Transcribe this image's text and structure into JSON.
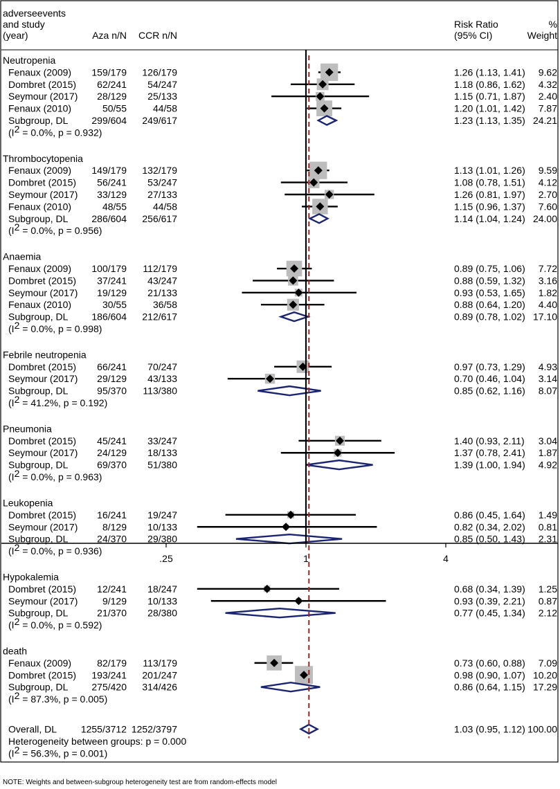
{
  "chart_data": {
    "type": "forest",
    "header": {
      "study_lines": [
        "adverseevents",
        "and study",
        "(year)"
      ],
      "col_aza": "Aza n/N",
      "col_ccr": "CCR n/N",
      "col_rr_lines": [
        "Risk Ratio",
        "(95% CI)"
      ],
      "col_weight_lines": [
        "%",
        "Weight"
      ]
    },
    "x_axis": {
      "scale": "log",
      "range": [
        0.0625,
        6.5
      ],
      "null_value": 1,
      "ticks": [
        {
          "value": 0.25,
          "label": ".25"
        },
        {
          "value": 1,
          "label": "1"
        },
        {
          "value": 4,
          "label": "4"
        }
      ]
    },
    "overall_reference_rr": 1.03,
    "colors": {
      "line": "#000000",
      "box": "#bdbdbd",
      "diamond_outline": "#1a2470",
      "reference_line": "#a02020"
    },
    "groups": [
      {
        "name": "Neutropenia",
        "studies": [
          {
            "label": "Fenaux (2009)",
            "aza": "159/179",
            "ccr": "126/179",
            "rr": 1.26,
            "lo": 1.13,
            "hi": 1.41,
            "ci": "1.26 (1.13, 1.41)",
            "weight": 9.62,
            "weight_label": "9.62"
          },
          {
            "label": "Dombret (2015)",
            "aza": "62/241",
            "ccr": "54/247",
            "rr": 1.18,
            "lo": 0.86,
            "hi": 1.62,
            "ci": "1.18 (0.86, 1.62)",
            "weight": 4.32,
            "weight_label": "4.32"
          },
          {
            "label": "Seymour (2017)",
            "aza": "28/129",
            "ccr": "25/133",
            "rr": 1.15,
            "lo": 0.71,
            "hi": 1.87,
            "ci": "1.15 (0.71, 1.87)",
            "weight": 2.4,
            "weight_label": "2.40"
          },
          {
            "label": "Fenaux (2010)",
            "aza": "50/55",
            "ccr": "44/58",
            "rr": 1.2,
            "lo": 1.01,
            "hi": 1.42,
            "ci": "1.20 (1.01, 1.42)",
            "weight": 7.87,
            "weight_label": "7.87"
          }
        ],
        "subgroup": {
          "label": "Subgroup, DL",
          "aza": "299/604",
          "ccr": "249/617",
          "rr": 1.23,
          "lo": 1.13,
          "hi": 1.35,
          "ci": "1.23 (1.13, 1.35)",
          "weight_label": "24.21"
        },
        "heterogeneity": {
          "prefix": "(I",
          "sup": "2",
          "suffix": " = 0.0%, p = 0.932)"
        }
      },
      {
        "name": "Thrombocytopenia",
        "studies": [
          {
            "label": "Fenaux (2009)",
            "aza": "149/179",
            "ccr": "132/179",
            "rr": 1.13,
            "lo": 1.01,
            "hi": 1.26,
            "ci": "1.13 (1.01, 1.26)",
            "weight": 9.59,
            "weight_label": "9.59"
          },
          {
            "label": "Dombret (2015)",
            "aza": "56/241",
            "ccr": "53/247",
            "rr": 1.08,
            "lo": 0.78,
            "hi": 1.51,
            "ci": "1.08 (0.78, 1.51)",
            "weight": 4.12,
            "weight_label": "4.12"
          },
          {
            "label": "Seymour (2017)",
            "aza": "33/129",
            "ccr": "27/133",
            "rr": 1.26,
            "lo": 0.81,
            "hi": 1.97,
            "ci": "1.26 (0.81, 1.97)",
            "weight": 2.7,
            "weight_label": "2.70"
          },
          {
            "label": "Fenaux (2010)",
            "aza": "48/55",
            "ccr": "44/58",
            "rr": 1.15,
            "lo": 0.96,
            "hi": 1.37,
            "ci": "1.15 (0.96, 1.37)",
            "weight": 7.6,
            "weight_label": "7.60"
          }
        ],
        "subgroup": {
          "label": "Subgroup, DL",
          "aza": "286/604",
          "ccr": "256/617",
          "rr": 1.14,
          "lo": 1.04,
          "hi": 1.24,
          "ci": "1.14 (1.04, 1.24)",
          "weight_label": "24.00"
        },
        "heterogeneity": {
          "prefix": "(I",
          "sup": "2",
          "suffix": " = 0.0%, p = 0.956)"
        }
      },
      {
        "name": "Anaemia",
        "studies": [
          {
            "label": "Fenaux (2009)",
            "aza": "100/179",
            "ccr": "112/179",
            "rr": 0.89,
            "lo": 0.75,
            "hi": 1.06,
            "ci": "0.89 (0.75, 1.06)",
            "weight": 7.72,
            "weight_label": "7.72"
          },
          {
            "label": "Dombret (2015)",
            "aza": "37/241",
            "ccr": "43/247",
            "rr": 0.88,
            "lo": 0.59,
            "hi": 1.32,
            "ci": "0.88 (0.59, 1.32)",
            "weight": 3.16,
            "weight_label": "3.16"
          },
          {
            "label": "Seymour (2017)",
            "aza": "19/129",
            "ccr": "21/133",
            "rr": 0.93,
            "lo": 0.53,
            "hi": 1.65,
            "ci": "0.93 (0.53, 1.65)",
            "weight": 1.82,
            "weight_label": "1.82"
          },
          {
            "label": "Fenaux (2010)",
            "aza": "30/55",
            "ccr": "36/58",
            "rr": 0.88,
            "lo": 0.64,
            "hi": 1.2,
            "ci": "0.88 (0.64, 1.20)",
            "weight": 4.4,
            "weight_label": "4.40"
          }
        ],
        "subgroup": {
          "label": "Subgroup, DL",
          "aza": "186/604",
          "ccr": "212/617",
          "rr": 0.89,
          "lo": 0.78,
          "hi": 1.02,
          "ci": "0.89 (0.78, 1.02)",
          "weight_label": "17.10"
        },
        "heterogeneity": {
          "prefix": "(I",
          "sup": "2",
          "suffix": " = 0.0%, p = 0.998)"
        }
      },
      {
        "name": "Febrile neutropenia",
        "studies": [
          {
            "label": "Dombret (2015)",
            "aza": "66/241",
            "ccr": "70/247",
            "rr": 0.97,
            "lo": 0.73,
            "hi": 1.29,
            "ci": "0.97 (0.73, 1.29)",
            "weight": 4.93,
            "weight_label": "4.93"
          },
          {
            "label": "Seymour (2017)",
            "aza": "29/129",
            "ccr": "43/133",
            "rr": 0.7,
            "lo": 0.46,
            "hi": 1.04,
            "ci": "0.70 (0.46, 1.04)",
            "weight": 3.14,
            "weight_label": "3.14"
          }
        ],
        "subgroup": {
          "label": "Subgroup, DL",
          "aza": "95/370",
          "ccr": "113/380",
          "rr": 0.85,
          "lo": 0.62,
          "hi": 1.16,
          "ci": "0.85 (0.62, 1.16)",
          "weight_label": "8.07"
        },
        "heterogeneity": {
          "prefix": "(I",
          "sup": "2",
          "suffix": " = 41.2%, p = 0.192)"
        }
      },
      {
        "name": "Pneumonia",
        "studies": [
          {
            "label": "Dombret (2015)",
            "aza": "45/241",
            "ccr": "33/247",
            "rr": 1.4,
            "lo": 0.93,
            "hi": 2.11,
            "ci": "1.40 (0.93, 2.11)",
            "weight": 3.04,
            "weight_label": "3.04"
          },
          {
            "label": "Seymour (2017)",
            "aza": "24/129",
            "ccr": "18/133",
            "rr": 1.37,
            "lo": 0.78,
            "hi": 2.41,
            "ci": "1.37 (0.78, 2.41)",
            "weight": 1.87,
            "weight_label": "1.87"
          }
        ],
        "subgroup": {
          "label": "Subgroup, DL",
          "aza": "69/370",
          "ccr": "51/380",
          "rr": 1.39,
          "lo": 1.0,
          "hi": 1.94,
          "ci": "1.39 (1.00, 1.94)",
          "weight_label": "4.92"
        },
        "heterogeneity": {
          "prefix": "(I",
          "sup": "2",
          "suffix": " = 0.0%, p = 0.963)"
        }
      },
      {
        "name": "Leukopenia",
        "studies": [
          {
            "label": "Dombret (2015)",
            "aza": "16/241",
            "ccr": "19/247",
            "rr": 0.86,
            "lo": 0.45,
            "hi": 1.64,
            "ci": "0.86 (0.45, 1.64)",
            "weight": 1.49,
            "weight_label": "1.49"
          },
          {
            "label": "Seymour (2017)",
            "aza": "8/129",
            "ccr": "10/133",
            "rr": 0.82,
            "lo": 0.34,
            "hi": 2.02,
            "ci": "0.82 (0.34, 2.02)",
            "weight": 0.81,
            "weight_label": "0.81"
          }
        ],
        "subgroup": {
          "label": "Subgroup, DL",
          "aza": "24/370",
          "ccr": "29/380",
          "rr": 0.85,
          "lo": 0.5,
          "hi": 1.43,
          "ci": "0.85 (0.50, 1.43)",
          "weight_label": "2.31"
        },
        "heterogeneity": {
          "prefix": "(I",
          "sup": "2",
          "suffix": " = 0.0%, p = 0.936)"
        }
      },
      {
        "name": "Hypokalemia",
        "studies": [
          {
            "label": "Dombret (2015)",
            "aza": "12/241",
            "ccr": "18/247",
            "rr": 0.68,
            "lo": 0.34,
            "hi": 1.39,
            "ci": "0.68 (0.34, 1.39)",
            "weight": 1.25,
            "weight_label": "1.25"
          },
          {
            "label": "Seymour (2017)",
            "aza": "9/129",
            "ccr": "10/133",
            "rr": 0.93,
            "lo": 0.39,
            "hi": 2.21,
            "ci": "0.93 (0.39, 2.21)",
            "weight": 0.87,
            "weight_label": "0.87"
          }
        ],
        "subgroup": {
          "label": "Subgroup, DL",
          "aza": "21/370",
          "ccr": "28/380",
          "rr": 0.77,
          "lo": 0.45,
          "hi": 1.34,
          "ci": "0.77 (0.45, 1.34)",
          "weight_label": "2.12"
        },
        "heterogeneity": {
          "prefix": "(I",
          "sup": "2",
          "suffix": " = 0.0%, p = 0.592)"
        }
      },
      {
        "name": "death",
        "studies": [
          {
            "label": "Fenaux (2009)",
            "aza": "82/179",
            "ccr": "113/179",
            "rr": 0.73,
            "lo": 0.6,
            "hi": 0.88,
            "ci": "0.73 (0.60, 0.88)",
            "weight": 7.09,
            "weight_label": "7.09"
          },
          {
            "label": "Dombret (2015)",
            "aza": "193/241",
            "ccr": "201/247",
            "rr": 0.98,
            "lo": 0.9,
            "hi": 1.07,
            "ci": "0.98 (0.90, 1.07)",
            "weight": 10.2,
            "weight_label": "10.20"
          }
        ],
        "subgroup": {
          "label": "Subgroup, DL",
          "aza": "275/420",
          "ccr": "314/426",
          "rr": 0.86,
          "lo": 0.64,
          "hi": 1.15,
          "ci": "0.86 (0.64, 1.15)",
          "weight_label": "17.29"
        },
        "heterogeneity": {
          "prefix": "(I",
          "sup": "2",
          "suffix": " = 87.3%, p = 0.005)"
        }
      }
    ],
    "overall": {
      "label": "Overall, DL",
      "aza": "1255/3712",
      "ccr": "1252/3797",
      "rr": 1.03,
      "lo": 0.95,
      "hi": 1.12,
      "ci": "1.03 (0.95, 1.12)",
      "weight_label": "100.00",
      "between_groups": "Heterogeneity between groups: p = 0.000",
      "heterogeneity": {
        "prefix": "(I",
        "sup": "2",
        "suffix": " = 56.3%, p = 0.001)"
      }
    },
    "note": "NOTE: Weights and between-subgroup heterogeneity test are from random-effects model"
  }
}
